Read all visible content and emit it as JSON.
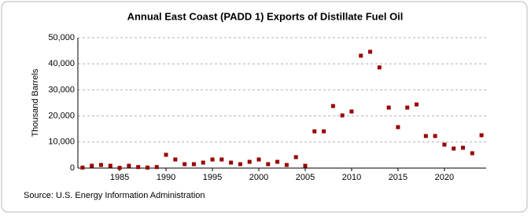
{
  "chart_data": {
    "type": "scatter",
    "title": "Annual East Coast (PADD 1) Exports of Distillate Fuel Oil",
    "y_label": "Thousand Barrels",
    "source": "Source: U.S. Energy Information Administration",
    "color": "#990000",
    "grid": true,
    "x": [
      1981,
      1982,
      1983,
      1984,
      1985,
      1986,
      1987,
      1988,
      1989,
      1990,
      1991,
      1992,
      1993,
      1994,
      1995,
      1996,
      1997,
      1998,
      1999,
      2000,
      2001,
      2002,
      2003,
      2004,
      2005,
      2006,
      2007,
      2008,
      2009,
      2010,
      2011,
      2012,
      2013,
      2014,
      2015,
      2016,
      2017,
      2018,
      2019,
      2020,
      2021,
      2022,
      2023,
      2024
    ],
    "values": [
      200,
      900,
      1200,
      900,
      100,
      900,
      400,
      200,
      400,
      5100,
      3300,
      1500,
      1500,
      2100,
      3300,
      3300,
      2100,
      1500,
      2400,
      3300,
      1500,
      2400,
      1200,
      4200,
      900,
      14100,
      14100,
      23800,
      20200,
      21700,
      43100,
      44600,
      38600,
      23200,
      15700,
      23200,
      24400,
      12300,
      12300,
      9000,
      7500,
      7800,
      5700,
      12600
    ],
    "xlim": [
      1980.5,
      2024.5
    ],
    "xticks": [
      1985,
      1990,
      1995,
      2000,
      2005,
      2010,
      2015,
      2020
    ],
    "ylim": [
      0,
      50000
    ],
    "yticks": [
      0,
      {
        "value": 10000,
        "label": "10,000"
      },
      {
        "value": 20000,
        "label": "20,000"
      },
      {
        "value": 30000,
        "label": "30,000"
      },
      {
        "value": 40000,
        "label": "40,000"
      },
      {
        "value": 50000,
        "label": "50,000"
      }
    ]
  }
}
